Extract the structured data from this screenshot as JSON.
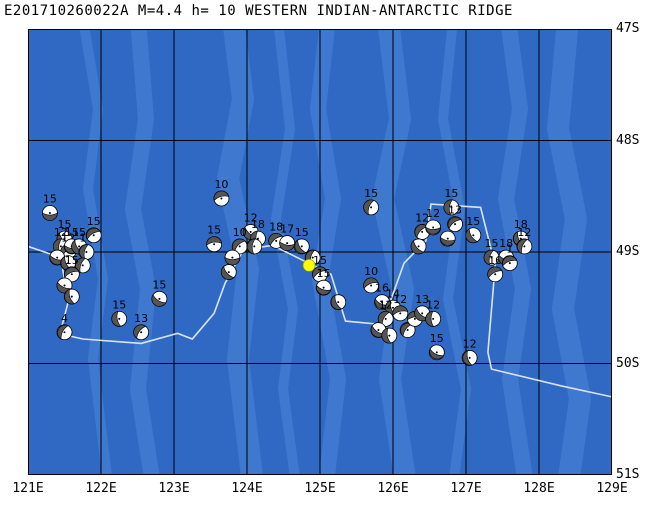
{
  "header": {
    "title": "E201710260022A M=4.4 h= 10 WESTERN INDIAN-ANTARCTIC RIDGE"
  },
  "map": {
    "lon_range": [
      121,
      129
    ],
    "lat_range": [
      -51,
      -47
    ],
    "ocean_color": "#2f69c4",
    "ridge_color": "#4a85d8",
    "grid_color": "#000000",
    "track_color": "#d9e4f0",
    "epicenter_color": "#ffff00"
  },
  "axes": {
    "lat_labels": [
      "47S",
      "48S",
      "49S",
      "50S",
      "51S"
    ],
    "lon_labels": [
      "121E",
      "122E",
      "123E",
      "124E",
      "125E",
      "126E",
      "127E",
      "128E",
      "129E"
    ]
  },
  "epicenter": {
    "lon": 124.85,
    "lat": -49.12
  },
  "mechanisms": [
    {
      "lon": 121.3,
      "lat": -48.65,
      "depth": "15"
    },
    {
      "lon": 121.5,
      "lat": -48.88,
      "depth": "15"
    },
    {
      "lon": 121.45,
      "lat": -48.95,
      "depth": "12"
    },
    {
      "lon": 121.55,
      "lat": -49.0,
      "depth": "12"
    },
    {
      "lon": 121.6,
      "lat": -48.95,
      "depth": "15"
    },
    {
      "lon": 121.7,
      "lat": -48.95,
      "depth": "15"
    },
    {
      "lon": 121.8,
      "lat": -49.0,
      "depth": "10"
    },
    {
      "lon": 121.9,
      "lat": -48.85,
      "depth": "15"
    },
    {
      "lon": 121.4,
      "lat": -49.05,
      "depth": ""
    },
    {
      "lon": 121.55,
      "lat": -49.1,
      "depth": ""
    },
    {
      "lon": 121.75,
      "lat": -49.12,
      "depth": ""
    },
    {
      "lon": 121.6,
      "lat": -49.2,
      "depth": "15"
    },
    {
      "lon": 121.5,
      "lat": -49.3,
      "depth": ""
    },
    {
      "lon": 121.6,
      "lat": -49.4,
      "depth": ""
    },
    {
      "lon": 121.5,
      "lat": -49.72,
      "depth": "4"
    },
    {
      "lon": 123.65,
      "lat": -48.52,
      "depth": "10"
    },
    {
      "lon": 122.8,
      "lat": -49.42,
      "depth": "15"
    },
    {
      "lon": 122.25,
      "lat": -49.6,
      "depth": "15"
    },
    {
      "lon": 122.55,
      "lat": -49.72,
      "depth": "13"
    },
    {
      "lon": 123.55,
      "lat": -48.93,
      "depth": "15"
    },
    {
      "lon": 124.05,
      "lat": -48.82,
      "depth": "12"
    },
    {
      "lon": 124.15,
      "lat": -48.88,
      "depth": "18"
    },
    {
      "lon": 123.9,
      "lat": -48.95,
      "depth": "10"
    },
    {
      "lon": 123.8,
      "lat": -49.05,
      "depth": ""
    },
    {
      "lon": 123.75,
      "lat": -49.18,
      "depth": ""
    },
    {
      "lon": 124.1,
      "lat": -48.95,
      "depth": ""
    },
    {
      "lon": 124.4,
      "lat": -48.9,
      "depth": "18"
    },
    {
      "lon": 124.55,
      "lat": -48.92,
      "depth": "17"
    },
    {
      "lon": 124.75,
      "lat": -48.95,
      "depth": "15"
    },
    {
      "lon": 124.9,
      "lat": -49.05,
      "depth": ""
    },
    {
      "lon": 125.0,
      "lat": -49.2,
      "depth": "15"
    },
    {
      "lon": 125.05,
      "lat": -49.32,
      "depth": "15"
    },
    {
      "lon": 125.25,
      "lat": -49.45,
      "depth": ""
    },
    {
      "lon": 125.7,
      "lat": -48.6,
      "depth": "15"
    },
    {
      "lon": 125.7,
      "lat": -49.3,
      "depth": "10"
    },
    {
      "lon": 125.85,
      "lat": -49.45,
      "depth": "16"
    },
    {
      "lon": 126.0,
      "lat": -49.5,
      "depth": "14"
    },
    {
      "lon": 125.9,
      "lat": -49.6,
      "depth": "12"
    },
    {
      "lon": 126.1,
      "lat": -49.55,
      "depth": "12"
    },
    {
      "lon": 125.8,
      "lat": -49.7,
      "depth": ""
    },
    {
      "lon": 125.95,
      "lat": -49.75,
      "depth": ""
    },
    {
      "lon": 126.2,
      "lat": -49.7,
      "depth": ""
    },
    {
      "lon": 126.3,
      "lat": -49.6,
      "depth": ""
    },
    {
      "lon": 126.4,
      "lat": -49.55,
      "depth": "13"
    },
    {
      "lon": 126.55,
      "lat": -49.6,
      "depth": "12"
    },
    {
      "lon": 126.4,
      "lat": -48.82,
      "depth": "12"
    },
    {
      "lon": 126.55,
      "lat": -48.78,
      "depth": "12"
    },
    {
      "lon": 126.35,
      "lat": -48.95,
      "depth": ""
    },
    {
      "lon": 126.8,
      "lat": -48.6,
      "depth": "15"
    },
    {
      "lon": 126.85,
      "lat": -48.75,
      "depth": "13"
    },
    {
      "lon": 126.75,
      "lat": -48.88,
      "depth": ""
    },
    {
      "lon": 127.1,
      "lat": -48.85,
      "depth": "15"
    },
    {
      "lon": 127.35,
      "lat": -49.05,
      "depth": "15"
    },
    {
      "lon": 127.4,
      "lat": -49.2,
      "depth": "16"
    },
    {
      "lon": 127.55,
      "lat": -49.05,
      "depth": "18"
    },
    {
      "lon": 127.75,
      "lat": -48.88,
      "depth": "18"
    },
    {
      "lon": 127.8,
      "lat": -48.95,
      "depth": "12"
    },
    {
      "lon": 127.6,
      "lat": -49.1,
      "depth": "1"
    },
    {
      "lon": 126.6,
      "lat": -49.9,
      "depth": "15"
    },
    {
      "lon": 127.05,
      "lat": -49.95,
      "depth": "12"
    }
  ],
  "track": [
    [
      121,
      -48.95
    ],
    [
      121.45,
      -49.05
    ],
    [
      121.55,
      -49.45
    ],
    [
      121.45,
      -49.7
    ],
    [
      121.55,
      -49.75
    ],
    [
      121.75,
      -49.78
    ],
    [
      122.55,
      -49.82
    ],
    [
      123.05,
      -49.73
    ],
    [
      123.25,
      -49.78
    ],
    [
      123.55,
      -49.55
    ],
    [
      123.7,
      -49.28
    ],
    [
      123.95,
      -48.98
    ],
    [
      124.35,
      -48.94
    ],
    [
      124.75,
      -49.07
    ],
    [
      125.15,
      -49.2
    ],
    [
      125.35,
      -49.62
    ],
    [
      125.85,
      -49.65
    ],
    [
      126.15,
      -49.1
    ],
    [
      126.45,
      -48.9
    ],
    [
      126.52,
      -48.57
    ],
    [
      127.2,
      -48.6
    ],
    [
      127.4,
      -49.12
    ],
    [
      127.3,
      -49.9
    ],
    [
      127.35,
      -50.05
    ],
    [
      128.3,
      -50.2
    ],
    [
      129,
      -50.3
    ]
  ]
}
